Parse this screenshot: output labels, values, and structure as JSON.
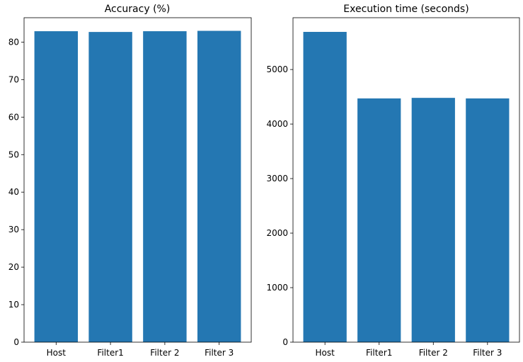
{
  "chart_data": [
    {
      "type": "bar",
      "title": "Accuracy (%)",
      "xlabel": "",
      "ylabel": "",
      "categories": [
        "Host",
        "Filter1",
        "Filter 2",
        "Filter 3"
      ],
      "values": [
        82.9,
        82.7,
        82.9,
        83.0
      ],
      "ylim": [
        0,
        86.5
      ],
      "yticks": [
        0,
        10,
        20,
        30,
        40,
        50,
        60,
        70,
        80
      ],
      "ytick_labels": [
        "0",
        "10",
        "20",
        "30",
        "40",
        "50",
        "60",
        "70",
        "80"
      ],
      "bar_color": "#2477b2",
      "grid": false,
      "legend": "none"
    },
    {
      "type": "bar",
      "title": "Execution time (seconds)",
      "xlabel": "",
      "ylabel": "",
      "categories": [
        "Host",
        "Filter1",
        "Filter 2",
        "Filter 3"
      ],
      "values": [
        5690,
        4470,
        4480,
        4470
      ],
      "ylim": [
        0,
        5950
      ],
      "yticks": [
        0,
        1000,
        2000,
        3000,
        4000,
        5000
      ],
      "ytick_labels": [
        "0",
        "1000",
        "2000",
        "3000",
        "4000",
        "5000"
      ],
      "bar_color": "#2477b2",
      "grid": false,
      "legend": "none"
    }
  ]
}
